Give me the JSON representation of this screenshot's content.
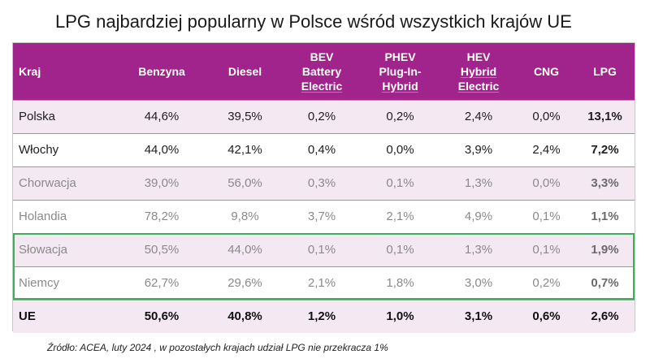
{
  "title": "LPG najbardziej popularny w Polsce wśród wszystkich krajów UE",
  "source": "Źródło: ACEA, luty 2024 , w pozostałych krajach udział LPG nie przekracza 1%",
  "chart_data": {
    "type": "table",
    "columns": [
      {
        "lines": [
          "Kraj"
        ]
      },
      {
        "lines": [
          "Benzyna"
        ]
      },
      {
        "lines": [
          "Diesel"
        ]
      },
      {
        "lines": [
          "BEV",
          "Battery",
          "Electric"
        ]
      },
      {
        "lines": [
          "PHEV",
          "Plug-In-",
          "Hybrid"
        ]
      },
      {
        "lines": [
          "HEV",
          "Hybrid",
          "Electric"
        ]
      },
      {
        "lines": [
          "CNG"
        ]
      },
      {
        "lines": [
          "LPG"
        ]
      }
    ],
    "rows": [
      {
        "country": "Polska",
        "values": [
          "44,6%",
          "39,5%",
          "0,2%",
          "0,2%",
          "2,4%",
          "0,0%",
          "13,1%"
        ]
      },
      {
        "country": "Włochy",
        "values": [
          "44,0%",
          "42,1%",
          "0,4%",
          "0,0%",
          "3,9%",
          "2,4%",
          "7,2%"
        ]
      },
      {
        "country": "Chorwacja",
        "values": [
          "39,0%",
          "56,0%",
          "0,3%",
          "0,1%",
          "1,3%",
          "0,0%",
          "3,3%"
        ]
      },
      {
        "country": "Holandia",
        "values": [
          "78,2%",
          "9,8%",
          "3,7%",
          "2,1%",
          "4,9%",
          "0,1%",
          "1,1%"
        ]
      },
      {
        "country": "Słowacja",
        "values": [
          "50,5%",
          "44,0%",
          "0,1%",
          "0,1%",
          "1,3%",
          "0,1%",
          "1,9%"
        ]
      },
      {
        "country": "Niemcy",
        "values": [
          "62,7%",
          "29,6%",
          "2,1%",
          "1,8%",
          "3,0%",
          "0,2%",
          "0,7%"
        ]
      },
      {
        "country": "UE",
        "values": [
          "50,6%",
          "40,8%",
          "1,2%",
          "1,0%",
          "3,1%",
          "0,6%",
          "2,6%"
        ]
      }
    ],
    "highlighted_rows": [
      "Słowacja",
      "Niemcy"
    ],
    "colors": {
      "header": "#a1248d",
      "shade": "#f4e8f2",
      "highlight_border": "#3fae5a"
    }
  }
}
